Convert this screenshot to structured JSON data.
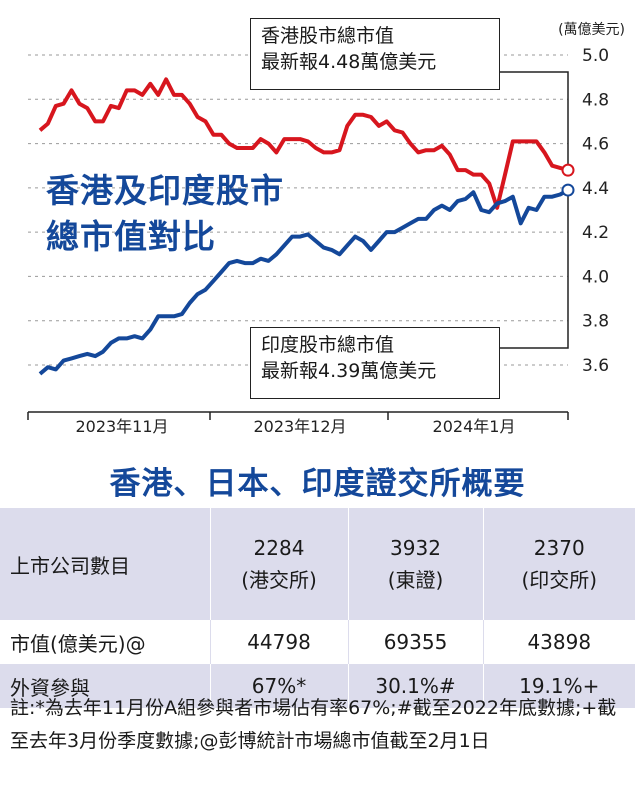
{
  "chart": {
    "title_line1": "香港及印度股市",
    "title_line2": "總市值對比",
    "hk_callout": {
      "line1": "香港股市總市值",
      "line2": "最新報4.48萬億美元"
    },
    "in_callout": {
      "line1": "印度股市總市值",
      "line2": "最新報4.39萬億美元"
    }
  },
  "chart_data": {
    "type": "line",
    "ylabel": "(萬億美元)",
    "ylim": [
      3.5,
      5.0
    ],
    "yticks": [
      "5.0",
      "4.8",
      "4.6",
      "4.4",
      "4.2",
      "4.0",
      "3.8",
      "3.6"
    ],
    "xlabels": [
      "2023年11月",
      "2023年12月",
      "2024年1月"
    ],
    "grid": true,
    "colors": {
      "hk": "#d7161e",
      "in": "#14489a"
    },
    "series": [
      {
        "name": "香港股市總市值",
        "values": [
          4.66,
          4.69,
          4.77,
          4.78,
          4.84,
          4.78,
          4.76,
          4.7,
          4.7,
          4.77,
          4.76,
          4.84,
          4.84,
          4.82,
          4.87,
          4.82,
          4.89,
          4.82,
          4.82,
          4.78,
          4.72,
          4.7,
          4.64,
          4.64,
          4.6,
          4.58,
          4.58,
          4.58,
          4.62,
          4.6,
          4.56,
          4.62,
          4.62,
          4.62,
          4.61,
          4.58,
          4.56,
          4.56,
          4.57,
          4.68,
          4.73,
          4.73,
          4.72,
          4.68,
          4.7,
          4.66,
          4.65,
          4.6,
          4.56,
          4.57,
          4.57,
          4.59,
          4.55,
          4.48,
          4.48,
          4.46,
          4.46,
          4.42,
          4.31,
          4.46,
          4.61,
          4.61,
          4.61,
          4.61,
          4.56,
          4.5,
          4.49,
          4.48
        ]
      },
      {
        "name": "印度股市總市值",
        "values": [
          3.56,
          3.59,
          3.58,
          3.62,
          3.63,
          3.64,
          3.65,
          3.64,
          3.66,
          3.7,
          3.72,
          3.72,
          3.73,
          3.72,
          3.76,
          3.82,
          3.82,
          3.82,
          3.83,
          3.88,
          3.92,
          3.94,
          3.98,
          4.02,
          4.06,
          4.07,
          4.06,
          4.06,
          4.08,
          4.07,
          4.1,
          4.14,
          4.18,
          4.18,
          4.19,
          4.16,
          4.13,
          4.12,
          4.1,
          4.14,
          4.18,
          4.16,
          4.12,
          4.16,
          4.2,
          4.2,
          4.22,
          4.24,
          4.26,
          4.26,
          4.3,
          4.32,
          4.3,
          4.34,
          4.35,
          4.38,
          4.3,
          4.29,
          4.33,
          4.34,
          4.36,
          4.24,
          4.31,
          4.3,
          4.36,
          4.36,
          4.37,
          4.39
        ]
      }
    ]
  },
  "table": {
    "title": "香港、日本、印度證交所概要",
    "rows": [
      {
        "label": "上市公司數目",
        "c1": "2284",
        "c1b": "(港交所)",
        "c2": "3932",
        "c2b": "(東證)",
        "c3": "2370",
        "c3b": "(印交所)"
      },
      {
        "label": "市值(億美元)@",
        "c1": "44798",
        "c2": "69355",
        "c3": "43898"
      },
      {
        "label": "外資參與",
        "c1": "67%*",
        "c2": "30.1%#",
        "c3": "19.1%+"
      }
    ]
  },
  "notes": "註:*為去年11月份A組參與者市場佔有率67%;#截至2022年底數據;+截至去年3月份季度數據;@彭博統計市場總市值截至2月1日"
}
